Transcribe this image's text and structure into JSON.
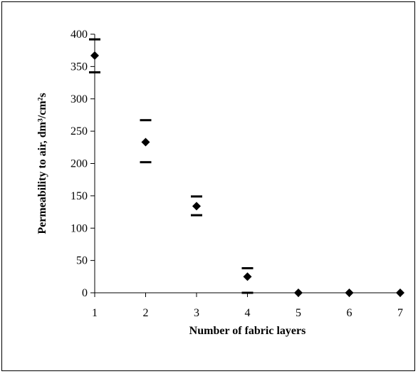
{
  "chart_data": {
    "type": "scatter",
    "title": "",
    "xlabel": "Number of fabric layers",
    "ylabel": "Permeability to air, dm³/cm²s",
    "xlim": [
      1,
      7
    ],
    "ylim": [
      0,
      400
    ],
    "x_ticks": [
      "1",
      "2",
      "3",
      "4",
      "5",
      "6",
      "7"
    ],
    "y_ticks": [
      "0",
      "50",
      "100",
      "150",
      "200",
      "250",
      "300",
      "350",
      "400"
    ],
    "grid": false,
    "legend": "none",
    "marker_color": "#000000",
    "points": [
      {
        "x": 1,
        "y": 367,
        "upper": 392,
        "lower": 341
      },
      {
        "x": 2,
        "y": 233,
        "upper": 267,
        "lower": 202
      },
      {
        "x": 3,
        "y": 134,
        "upper": 149,
        "lower": 120
      },
      {
        "x": 4,
        "y": 25,
        "upper": 38,
        "lower": 0
      },
      {
        "x": 5,
        "y": 0,
        "upper": 0,
        "lower": 0
      },
      {
        "x": 6,
        "y": 0,
        "upper": 0,
        "lower": 0
      },
      {
        "x": 7,
        "y": 0,
        "upper": 0,
        "lower": 0
      }
    ]
  }
}
